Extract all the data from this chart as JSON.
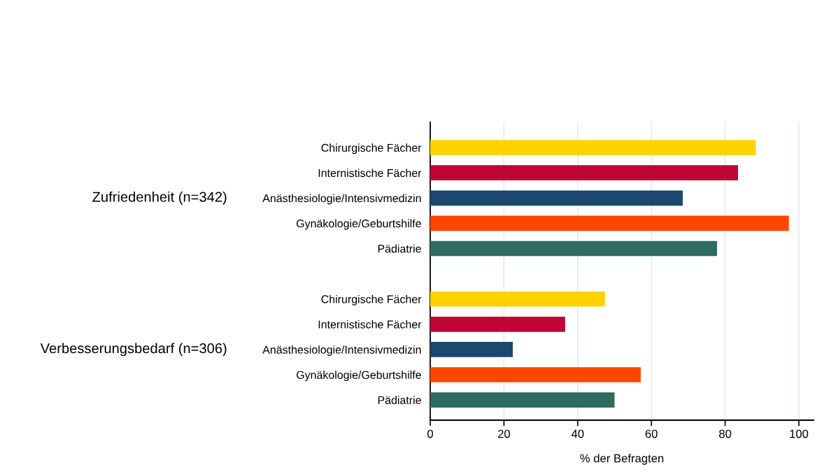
{
  "chart_data": {
    "type": "bar",
    "orientation": "horizontal",
    "xlabel": "% der Befragten",
    "categories": [
      "Chirurgische Fächer",
      "Internistische Fächer",
      "Anästhesiologie/Intensivmedizin",
      "Gynäkologie/Geburtshilfe",
      "Pädiatrie",
      null,
      "Chirurgische Fächer",
      "Internistische Fächer",
      "Anästhesiologie/Intensivmedizin",
      "Gynäkologie/Geburtshilfe",
      "Pädiatrie"
    ],
    "values": [
      88.3,
      83.5,
      68.5,
      97.3,
      77.8,
      null,
      47.4,
      36.6,
      22.4,
      57.1,
      50.0
    ],
    "colors": [
      "#ffd200",
      "#c00534",
      "#1b4770",
      "#ff4500",
      "#2e6b63",
      null,
      "#ffd200",
      "#c00534",
      "#1b4770",
      "#ff4500",
      "#2e6b63"
    ],
    "xlim": [
      0,
      104
    ],
    "xticks": [
      0,
      20,
      40,
      60,
      80,
      100
    ],
    "grid": "x",
    "annotations": [
      "Zufriedenheit (n=342)",
      "Verbesserungsbedarf (n=306)"
    ]
  }
}
